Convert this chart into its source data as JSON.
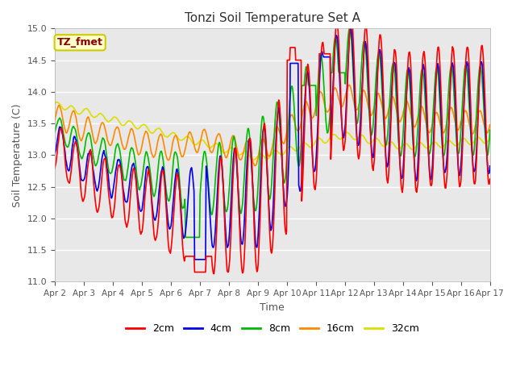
{
  "title": "Tonzi Soil Temperature Set A",
  "xlabel": "Time",
  "ylabel": "Soil Temperature (C)",
  "ylim": [
    11.0,
    15.0
  ],
  "yticks": [
    11.0,
    11.5,
    12.0,
    12.5,
    13.0,
    13.5,
    14.0,
    14.5,
    15.0
  ],
  "x_labels": [
    "Apr 2",
    "Apr 3",
    "Apr 4",
    "Apr 5",
    "Apr 6",
    "Apr 7",
    "Apr 8",
    "Apr 9",
    "Apr 10",
    "Apr 11",
    "Apr 12",
    "Apr 13",
    "Apr 14",
    "Apr 15",
    "Apr 16",
    "Apr 17"
  ],
  "annotation_text": "TZ_fmet",
  "annotation_color": "#8B0000",
  "annotation_bg": "#FFFFCC",
  "annotation_border": "#CCCC00",
  "series_colors": [
    "#FF0000",
    "#0000EE",
    "#00BB00",
    "#FF8800",
    "#DDDD00"
  ],
  "series_labels": [
    "2cm",
    "4cm",
    "8cm",
    "16cm",
    "32cm"
  ],
  "plot_bg_color": "#E8E8E8",
  "fig_bg_color": "#FFFFFF",
  "grid_color": "#FFFFFF"
}
